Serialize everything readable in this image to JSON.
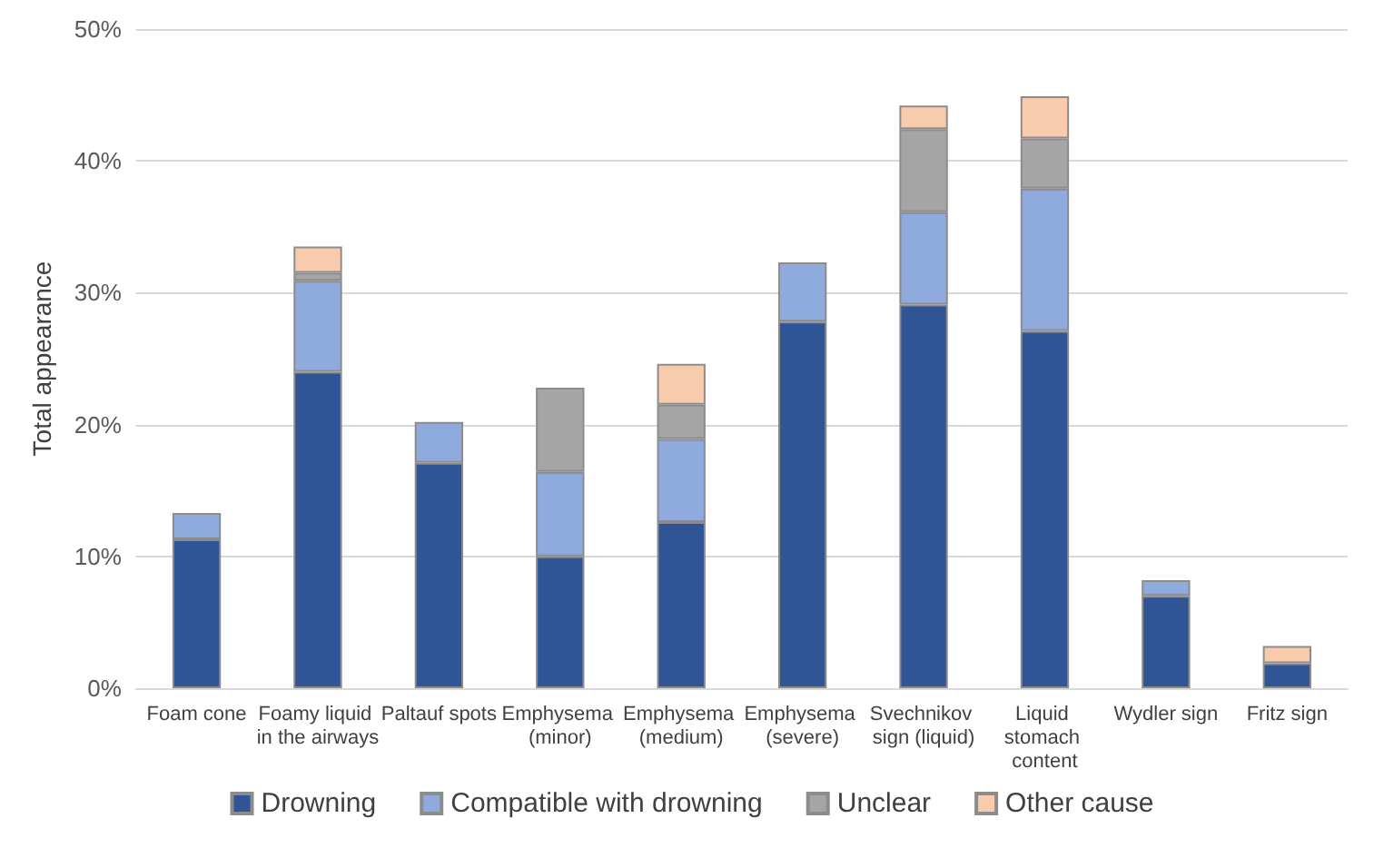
{
  "chart_data": {
    "type": "bar",
    "stacked": true,
    "ylabel": "Total appearance",
    "categories": [
      "Foam cone",
      "Foamy liquid in the airways",
      "Paltauf spots",
      "Emphysema (minor)",
      "Emphysema (medium)",
      "Emphysema (severe)",
      "Svechnikov sign (liquid)",
      "Liquid stomach content",
      "Wydler sign",
      "Fritz sign"
    ],
    "series": [
      {
        "name": "Drowning",
        "color": "#2f5597",
        "values": [
          11.3,
          24.0,
          17.1,
          10.0,
          12.6,
          27.8,
          29.1,
          27.1,
          7.0,
          1.9
        ]
      },
      {
        "name": "Compatible with drowning",
        "color": "#8faadc",
        "values": [
          2.0,
          6.9,
          3.1,
          6.4,
          6.3,
          4.5,
          7.0,
          10.8,
          1.2,
          null
        ]
      },
      {
        "name": "Unclear",
        "color": "#a5a5a5",
        "values": [
          null,
          0.6,
          null,
          6.4,
          2.6,
          null,
          6.3,
          3.8,
          null,
          null
        ]
      },
      {
        "name": "Other cause",
        "color": "#f8cbad",
        "values": [
          null,
          2.0,
          null,
          null,
          3.1,
          null,
          1.8,
          3.2,
          null,
          1.3
        ]
      }
    ],
    "ylim": [
      0,
      50
    ],
    "yticks": [
      {
        "value": 0,
        "label": "0%"
      },
      {
        "value": 10,
        "label": "10%"
      },
      {
        "value": 20,
        "label": "20%"
      },
      {
        "value": 30,
        "label": "30%"
      },
      {
        "value": 40,
        "label": "40%"
      },
      {
        "value": 50,
        "label": "50%"
      }
    ],
    "grid": "y",
    "legend": "bottom"
  }
}
